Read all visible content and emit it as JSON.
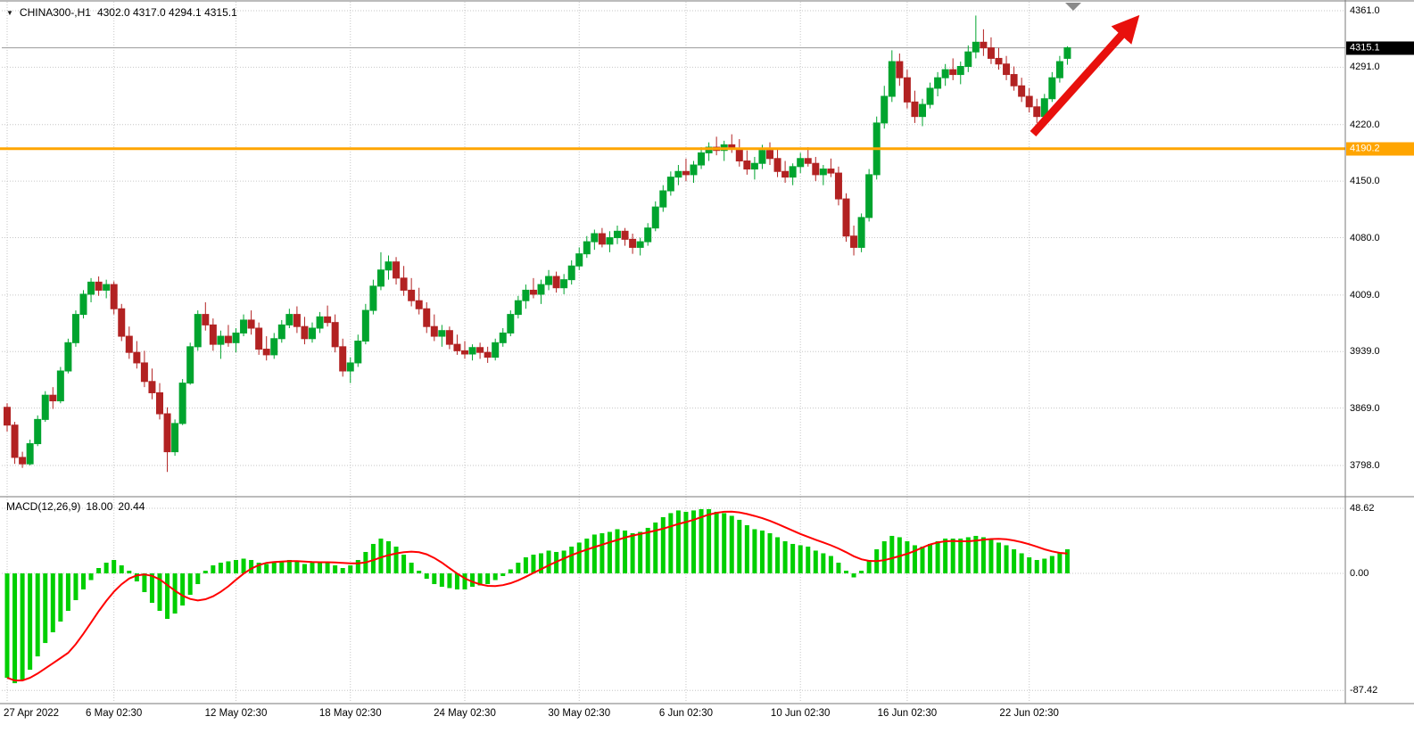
{
  "title": {
    "dropdown_icon": "▼",
    "symbol": "CHINA300-,H1",
    "ohlc": "4302.0 4317.0 4294.1 4315.1"
  },
  "price_axis": {
    "gridlines": [
      "4361.0",
      "4291.0",
      "4220.0",
      "4150.0",
      "4080.0",
      "4009.0",
      "3939.0",
      "3869.0",
      "3798.0"
    ],
    "current_price_badge": "4315.1",
    "hline_badge": "4190.2"
  },
  "macd_panel": {
    "name": "MACD(12,26,9)",
    "macd_value": "18.00",
    "signal_value": "20.44",
    "scale": [
      "48.62",
      "0.00",
      "-87.42"
    ]
  },
  "x_axis": {
    "labels": [
      "27 Apr 2022",
      "6 May 02:30",
      "12 May 02:30",
      "18 May 02:30",
      "24 May 02:30",
      "30 May 02:30",
      "6 Jun 02:30",
      "10 Jun 02:30",
      "16 Jun 02:30",
      "22 Jun 02:30"
    ],
    "tick_indices": [
      0,
      14,
      30,
      45,
      60,
      75,
      89,
      104,
      118,
      134
    ]
  },
  "colors": {
    "bull": "#00A42E",
    "bear": "#B22222",
    "macd_bar": "#00CF00",
    "signal_line": "#FF0000",
    "hline": "#FFA500",
    "grid": "#C6C6C6",
    "border": "#7A7A7A",
    "bid_line": "#9A9A9A",
    "arrow": "#E8100C",
    "shift_marker": "#8A8A8A"
  },
  "chart_data": {
    "type": "candlestick+macd",
    "symbol": "CHINA300-",
    "timeframe": "H1",
    "title": "CHINA300-,H1 4302.0 4317.0 4294.1 4315.1",
    "last_ohlc": {
      "open": 4302.0,
      "high": 4317.0,
      "low": 4294.1,
      "close": 4315.1
    },
    "y_range": [
      3798.0,
      4361.0
    ],
    "horizontal_line": 4190.2,
    "current_price": 4315.1,
    "macd_range": [
      -87.42,
      48.62
    ],
    "macd_last": {
      "macd": 18.0,
      "signal": 20.44
    },
    "candles": [
      [
        3870,
        3875,
        3840,
        3848
      ],
      [
        3848,
        3852,
        3800,
        3808
      ],
      [
        3808,
        3815,
        3795,
        3800
      ],
      [
        3800,
        3830,
        3798,
        3825
      ],
      [
        3825,
        3860,
        3822,
        3855
      ],
      [
        3855,
        3890,
        3852,
        3885
      ],
      [
        3885,
        3895,
        3868,
        3878
      ],
      [
        3878,
        3920,
        3875,
        3915
      ],
      [
        3915,
        3955,
        3912,
        3950
      ],
      [
        3950,
        3990,
        3945,
        3985
      ],
      [
        3985,
        4015,
        3980,
        4010
      ],
      [
        4010,
        4030,
        4000,
        4025
      ],
      [
        4025,
        4032,
        4008,
        4015
      ],
      [
        4015,
        4028,
        4005,
        4022
      ],
      [
        4022,
        4026,
        3985,
        3992
      ],
      [
        3992,
        3998,
        3952,
        3958
      ],
      [
        3958,
        3970,
        3930,
        3938
      ],
      [
        3938,
        3952,
        3918,
        3925
      ],
      [
        3925,
        3940,
        3895,
        3902
      ],
      [
        3902,
        3918,
        3880,
        3888
      ],
      [
        3888,
        3900,
        3855,
        3862
      ],
      [
        3862,
        3870,
        3790,
        3815
      ],
      [
        3815,
        3855,
        3810,
        3850
      ],
      [
        3850,
        3905,
        3848,
        3900
      ],
      [
        3900,
        3950,
        3898,
        3945
      ],
      [
        3945,
        3990,
        3940,
        3985
      ],
      [
        3985,
        4000,
        3965,
        3972
      ],
      [
        3972,
        3980,
        3940,
        3948
      ],
      [
        3948,
        3965,
        3930,
        3958
      ],
      [
        3958,
        3972,
        3945,
        3950
      ],
      [
        3950,
        3968,
        3938,
        3962
      ],
      [
        3962,
        3985,
        3958,
        3978
      ],
      [
        3978,
        3990,
        3960,
        3968
      ],
      [
        3968,
        3975,
        3935,
        3942
      ],
      [
        3942,
        3958,
        3928,
        3935
      ],
      [
        3935,
        3962,
        3930,
        3955
      ],
      [
        3955,
        3978,
        3950,
        3972
      ],
      [
        3972,
        3992,
        3968,
        3985
      ],
      [
        3985,
        3995,
        3962,
        3970
      ],
      [
        3970,
        3982,
        3948,
        3955
      ],
      [
        3955,
        3975,
        3950,
        3968
      ],
      [
        3968,
        3988,
        3962,
        3982
      ],
      [
        3982,
        3996,
        3970,
        3975
      ],
      [
        3975,
        3985,
        3938,
        3945
      ],
      [
        3945,
        3955,
        3908,
        3915
      ],
      [
        3915,
        3932,
        3900,
        3925
      ],
      [
        3925,
        3960,
        3920,
        3952
      ],
      [
        3952,
        3998,
        3948,
        3990
      ],
      [
        3990,
        4028,
        3985,
        4020
      ],
      [
        4020,
        4062,
        4015,
        4040
      ],
      [
        4040,
        4058,
        4028,
        4050
      ],
      [
        4050,
        4056,
        4022,
        4030
      ],
      [
        4030,
        4045,
        4008,
        4015
      ],
      [
        4015,
        4030,
        3995,
        4002
      ],
      [
        4002,
        4018,
        3985,
        3992
      ],
      [
        3992,
        4000,
        3962,
        3970
      ],
      [
        3970,
        3985,
        3952,
        3958
      ],
      [
        3958,
        3972,
        3945,
        3965
      ],
      [
        3965,
        3970,
        3942,
        3948
      ],
      [
        3948,
        3960,
        3935,
        3940
      ],
      [
        3940,
        3952,
        3930,
        3936
      ],
      [
        3936,
        3948,
        3928,
        3944
      ],
      [
        3944,
        3950,
        3930,
        3938
      ],
      [
        3938,
        3945,
        3925,
        3932
      ],
      [
        3932,
        3955,
        3928,
        3950
      ],
      [
        3950,
        3968,
        3945,
        3962
      ],
      [
        3962,
        3990,
        3958,
        3985
      ],
      [
        3985,
        4008,
        3980,
        4002
      ],
      [
        4002,
        4022,
        3992,
        4015
      ],
      [
        4015,
        4030,
        4005,
        4010
      ],
      [
        4010,
        4028,
        3998,
        4022
      ],
      [
        4022,
        4040,
        4015,
        4032
      ],
      [
        4032,
        4038,
        4012,
        4018
      ],
      [
        4018,
        4035,
        4010,
        4028
      ],
      [
        4028,
        4052,
        4022,
        4045
      ],
      [
        4045,
        4068,
        4040,
        4060
      ],
      [
        4060,
        4082,
        4055,
        4075
      ],
      [
        4075,
        4090,
        4065,
        4085
      ],
      [
        4085,
        4092,
        4068,
        4072
      ],
      [
        4072,
        4088,
        4062,
        4080
      ],
      [
        4080,
        4095,
        4072,
        4088
      ],
      [
        4088,
        4092,
        4070,
        4078
      ],
      [
        4078,
        4085,
        4060,
        4068
      ],
      [
        4068,
        4080,
        4058,
        4075
      ],
      [
        4075,
        4098,
        4070,
        4092
      ],
      [
        4092,
        4125,
        4088,
        4118
      ],
      [
        4118,
        4145,
        4112,
        4138
      ],
      [
        4138,
        4162,
        4132,
        4155
      ],
      [
        4155,
        4170,
        4145,
        4162
      ],
      [
        4162,
        4178,
        4150,
        4158
      ],
      [
        4158,
        4175,
        4148,
        4170
      ],
      [
        4170,
        4192,
        4165,
        4185
      ],
      [
        4185,
        4198,
        4175,
        4192
      ],
      [
        4192,
        4205,
        4182,
        4188
      ],
      [
        4188,
        4200,
        4175,
        4195
      ],
      [
        4195,
        4208,
        4185,
        4190
      ],
      [
        4190,
        4202,
        4168,
        4175
      ],
      [
        4175,
        4188,
        4158,
        4165
      ],
      [
        4165,
        4180,
        4152,
        4172
      ],
      [
        4172,
        4195,
        4165,
        4188
      ],
      [
        4188,
        4198,
        4170,
        4178
      ],
      [
        4178,
        4190,
        4155,
        4162
      ],
      [
        4162,
        4175,
        4148,
        4155
      ],
      [
        4155,
        4172,
        4145,
        4168
      ],
      [
        4168,
        4185,
        4160,
        4178
      ],
      [
        4178,
        4192,
        4168,
        4172
      ],
      [
        4172,
        4180,
        4150,
        4158
      ],
      [
        4158,
        4170,
        4145,
        4165
      ],
      [
        4165,
        4178,
        4155,
        4160
      ],
      [
        4160,
        4168,
        4120,
        4128
      ],
      [
        4128,
        4135,
        4075,
        4082
      ],
      [
        4082,
        4095,
        4058,
        4068
      ],
      [
        4068,
        4110,
        4062,
        4105
      ],
      [
        4105,
        4165,
        4100,
        4158
      ],
      [
        4158,
        4230,
        4152,
        4222
      ],
      [
        4222,
        4268,
        4215,
        4255
      ],
      [
        4255,
        4312,
        4248,
        4298
      ],
      [
        4298,
        4308,
        4268,
        4278
      ],
      [
        4278,
        4288,
        4240,
        4248
      ],
      [
        4248,
        4262,
        4222,
        4230
      ],
      [
        4230,
        4252,
        4218,
        4245
      ],
      [
        4245,
        4272,
        4240,
        4265
      ],
      [
        4265,
        4285,
        4255,
        4278
      ],
      [
        4278,
        4295,
        4268,
        4288
      ],
      [
        4288,
        4302,
        4275,
        4282
      ],
      [
        4282,
        4298,
        4270,
        4292
      ],
      [
        4292,
        4318,
        4285,
        4310
      ],
      [
        4310,
        4355,
        4302,
        4322
      ],
      [
        4322,
        4338,
        4305,
        4315
      ],
      [
        4315,
        4328,
        4295,
        4302
      ],
      [
        4302,
        4315,
        4288,
        4295
      ],
      [
        4295,
        4305,
        4275,
        4282
      ],
      [
        4282,
        4292,
        4262,
        4268
      ],
      [
        4268,
        4278,
        4248,
        4255
      ],
      [
        4255,
        4265,
        4235,
        4242
      ],
      [
        4242,
        4252,
        4222,
        4230
      ],
      [
        4230,
        4258,
        4225,
        4252
      ],
      [
        4252,
        4285,
        4248,
        4278
      ],
      [
        4278,
        4305,
        4272,
        4298
      ],
      [
        4302,
        4317,
        4294.1,
        4315.1
      ]
    ],
    "macd_histogram": [
      -78,
      -82,
      -80,
      -72,
      -62,
      -52,
      -44,
      -36,
      -28,
      -20,
      -12,
      -5,
      4,
      8,
      10,
      6,
      2,
      -6,
      -14,
      -22,
      -28,
      -34,
      -30,
      -24,
      -16,
      -8,
      2,
      6,
      8,
      9,
      10,
      11,
      10,
      8,
      7,
      8,
      9,
      10,
      9,
      7,
      8,
      9,
      8,
      6,
      4,
      6,
      10,
      16,
      22,
      26,
      24,
      20,
      14,
      8,
      2,
      -4,
      -8,
      -10,
      -11,
      -12,
      -12,
      -10,
      -9,
      -8,
      -5,
      -2,
      3,
      8,
      12,
      14,
      15,
      17,
      16,
      17,
      20,
      23,
      26,
      29,
      30,
      31,
      33,
      32,
      30,
      31,
      34,
      38,
      42,
      45,
      47,
      46,
      47,
      48,
      48,
      46,
      45,
      43,
      40,
      36,
      33,
      32,
      30,
      27,
      24,
      22,
      21,
      20,
      17,
      15,
      13,
      8,
      2,
      -3,
      2,
      10,
      18,
      24,
      28,
      27,
      24,
      21,
      20,
      22,
      24,
      26,
      26,
      26,
      27,
      28,
      27,
      25,
      23,
      21,
      18,
      15,
      12,
      10,
      11,
      13,
      15,
      18
    ]
  }
}
